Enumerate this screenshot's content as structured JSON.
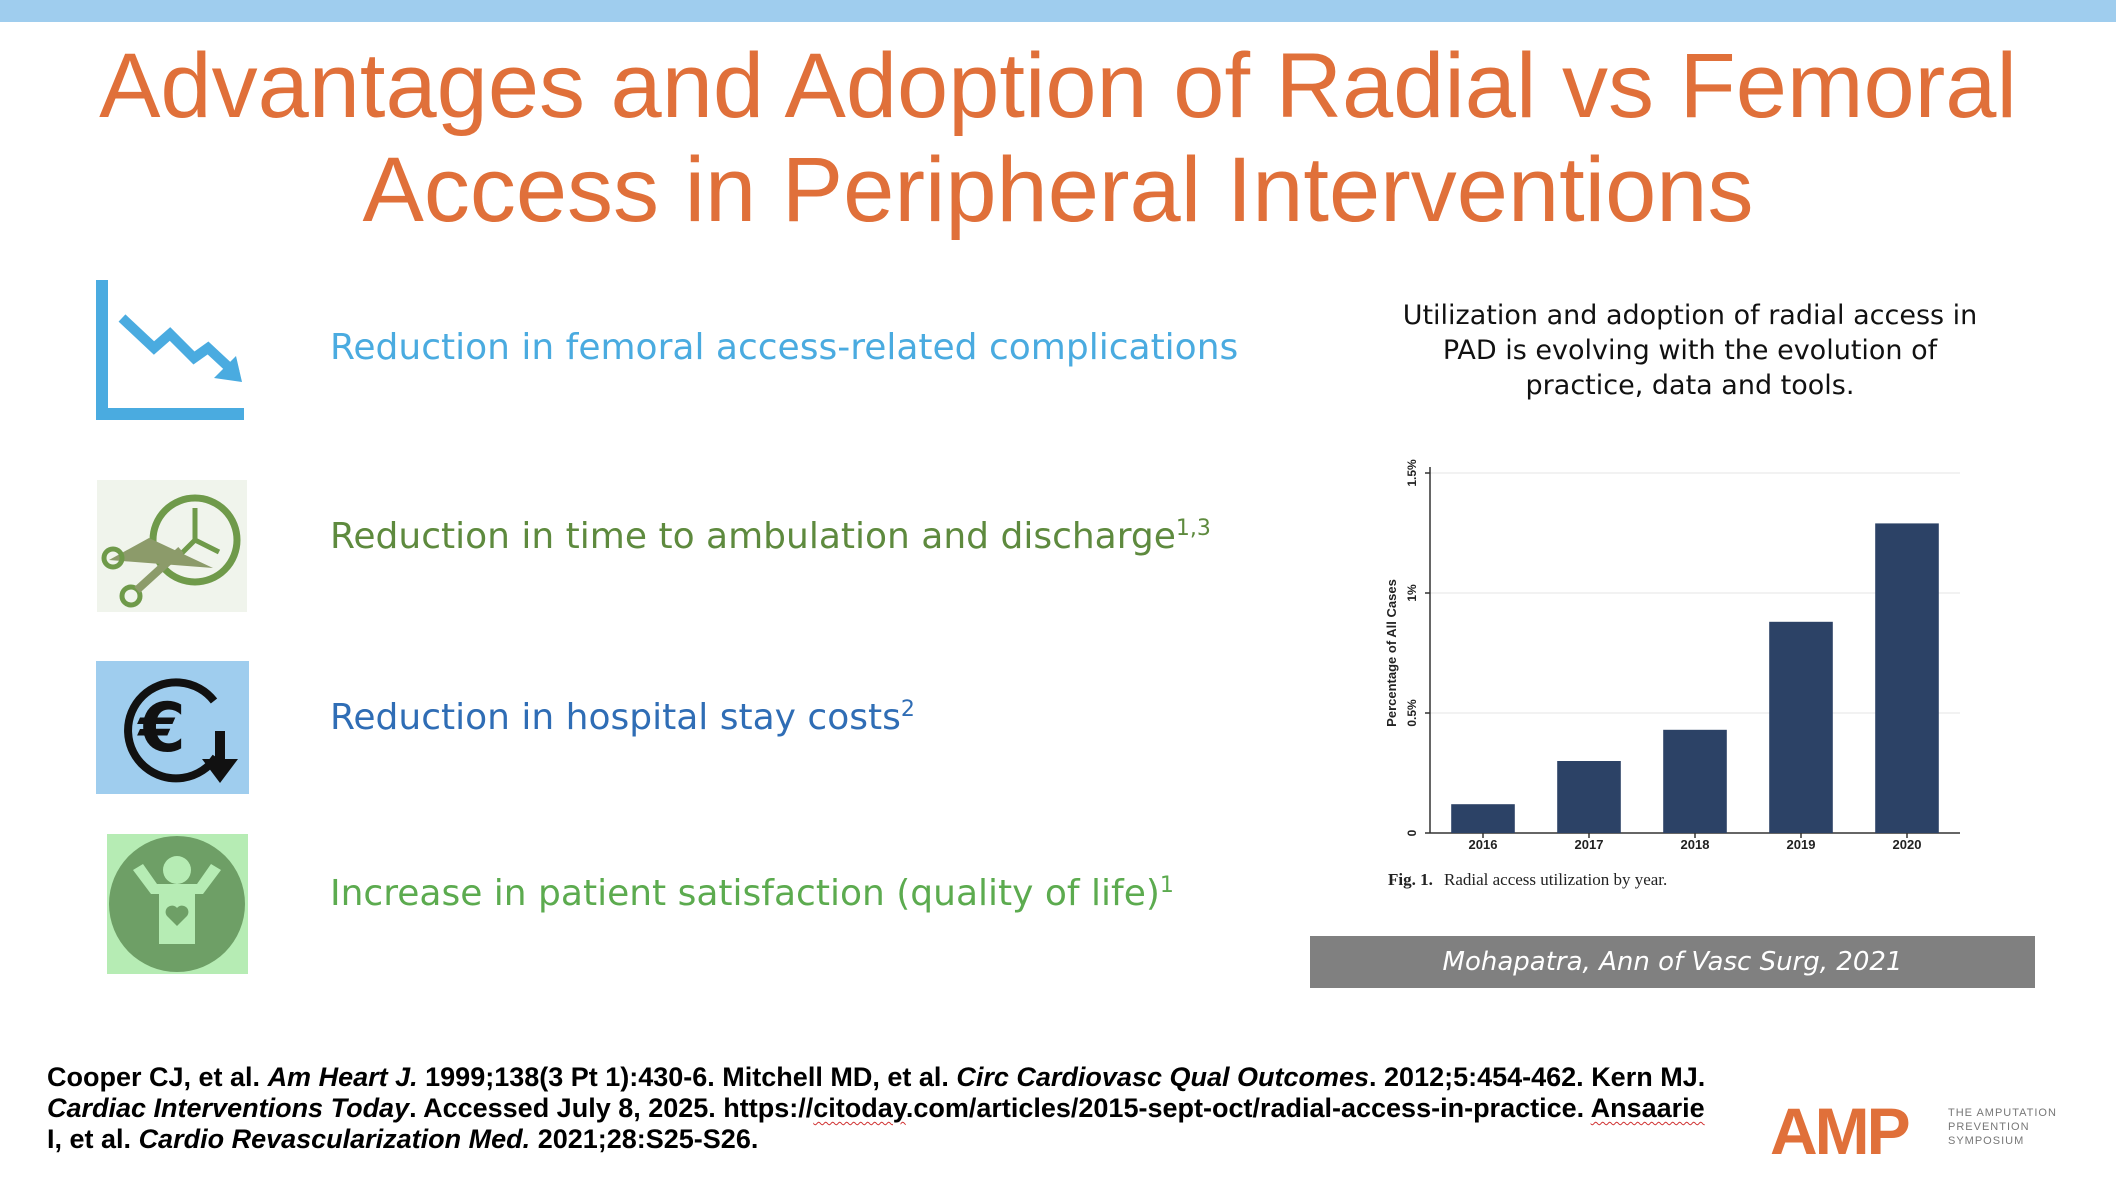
{
  "slide": {
    "title_line1": "Advantages and Adoption of Radial vs Femoral",
    "title_line2": "Access in Peripheral Interventions"
  },
  "bullets": [
    {
      "text": "Reduction in femoral access-related complications",
      "sup": "",
      "color": "#4aabe0",
      "icon": "trend-down-icon"
    },
    {
      "text": "Reduction in time to ambulation and discharge",
      "sup": "1,3",
      "color": "#5e8a3e",
      "icon": "clock-scissors-icon"
    },
    {
      "text": "Reduction in hospital stay costs",
      "sup": "2",
      "color": "#2f6db5",
      "icon": "euro-down-icon"
    },
    {
      "text": "Increase in patient satisfaction (quality of life)",
      "sup": "1",
      "color": "#5cab4f",
      "icon": "happy-person-icon"
    }
  ],
  "chart_caption": "Utilization and adoption of radial access in PAD is evolving with the evolution of practice, data and tools.",
  "chart_data": {
    "type": "bar",
    "categories": [
      "2016",
      "2017",
      "2018",
      "2019",
      "2020"
    ],
    "values": [
      0.12,
      0.3,
      0.43,
      0.88,
      1.29
    ],
    "ylabel": "Percentage of All Cases",
    "yticks": [
      0,
      0.5,
      1,
      1.5
    ],
    "ytick_labels": [
      "0",
      "0.5%",
      "1%",
      "1.5%"
    ],
    "ylim": [
      0,
      1.5
    ],
    "figure_label": "Fig. 1.",
    "figure_caption": "Radial access utilization by year.",
    "bar_color": "#2c4266"
  },
  "source": "Mohapatra, Ann of Vasc Surg, 2021",
  "references": {
    "r1a": "Cooper CJ, et al.",
    "r1j": "Am Heart J.",
    "r1b": "1999;138(3 Pt 1):430-6. Mitchell MD, et al.",
    "r2j": "Circ Cardiovasc Qual Outcomes",
    "r2b": ". 2012;5:454-462. Kern MJ.",
    "r3j": "Cardiac Interventions Today",
    "r3b": ". Accessed July 8, 2025. https://",
    "r3u": "citoday",
    "r3c": ".com/articles/2015-sept-oct/radial-access-in-practice.",
    "r4a": "Ansaarie",
    "r4b": "I, et al.",
    "r4j": "Cardio Revascularization Med.",
    "r4c": "2021;28:S25-S26."
  },
  "logo": {
    "mark": "AMP",
    "line1": "THE AMPUTATION",
    "line2": "PREVENTION",
    "line3": "SYMPOSIUM",
    "color": "#e0703a"
  }
}
